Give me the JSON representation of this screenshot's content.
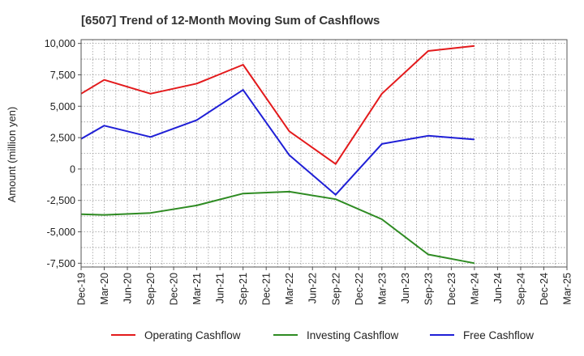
{
  "chart_data": {
    "type": "line",
    "title": "[6507]  Trend of 12-Month Moving Sum of Cashflows",
    "xlabel": "",
    "ylabel": "Amount (million yen)",
    "categories": [
      "Dec-19",
      "Mar-20",
      "Jun-20",
      "Sep-20",
      "Dec-20",
      "Mar-21",
      "Jun-21",
      "Sep-21",
      "Dec-21",
      "Mar-22",
      "Jun-22",
      "Sep-22",
      "Dec-22",
      "Mar-23",
      "Jun-23",
      "Sep-23",
      "Dec-23",
      "Mar-24",
      "Jun-24",
      "Sep-24",
      "Dec-24",
      "Mar-25"
    ],
    "ylim": [
      -7800,
      10300
    ],
    "yticks": [
      10000,
      7500,
      5000,
      2500,
      0,
      -2500,
      -5000,
      -7500
    ],
    "ytick_labels": [
      "10,000",
      "7,500",
      "5,000",
      "2,500",
      "0",
      "-2,500",
      "-5,000",
      "-7,500"
    ],
    "grid": true,
    "legend_position": "bottom",
    "series": [
      {
        "name": "Operating Cashflow",
        "color": "#e31a1c",
        "values": [
          6000,
          7100,
          null,
          6000,
          null,
          6800,
          null,
          8300,
          null,
          3000,
          null,
          400,
          null,
          6000,
          null,
          9400,
          null,
          9800,
          null,
          null,
          null,
          null
        ]
      },
      {
        "name": "Investing Cashflow",
        "color": "#2e8b22",
        "values": [
          -3600,
          -3650,
          null,
          -3500,
          null,
          -2900,
          null,
          -1950,
          null,
          -1800,
          null,
          -2400,
          null,
          -4000,
          null,
          -6800,
          null,
          -7500,
          null,
          null,
          null,
          null
        ]
      },
      {
        "name": "Free Cashflow",
        "color": "#1f1fd6",
        "values": [
          2400,
          3450,
          null,
          2550,
          null,
          3900,
          null,
          6300,
          null,
          1100,
          null,
          -2050,
          null,
          2000,
          null,
          2650,
          null,
          2350,
          null,
          null,
          null,
          null
        ]
      }
    ]
  }
}
